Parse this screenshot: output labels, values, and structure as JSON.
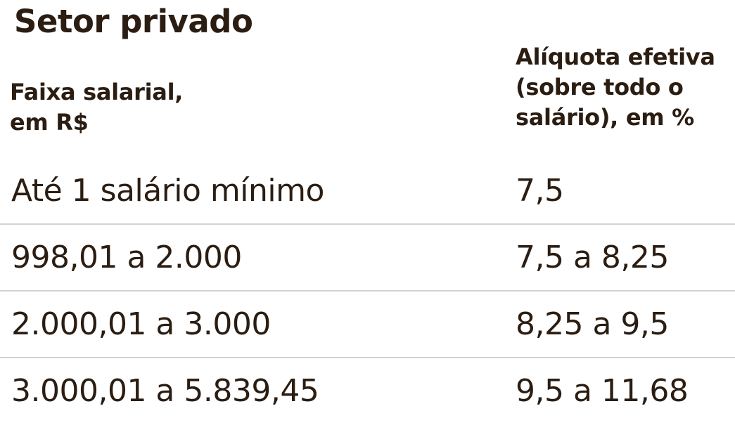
{
  "title": "Setor privado",
  "headers": {
    "range": "Faixa salarial,\nem R$",
    "rate": "Alíquota efetiva\n(sobre todo o\nsalário), em %"
  },
  "rows": [
    {
      "range": "Até 1 salário mínimo",
      "rate": "7,5"
    },
    {
      "range": "998,01 a 2.000",
      "rate": "7,5 a 8,25"
    },
    {
      "range": "2.000,01 a 3.000",
      "rate": "8,25 a 9,5"
    },
    {
      "range": "3.000,01 a 5.839,45",
      "rate": "9,5 a 11,68"
    }
  ]
}
